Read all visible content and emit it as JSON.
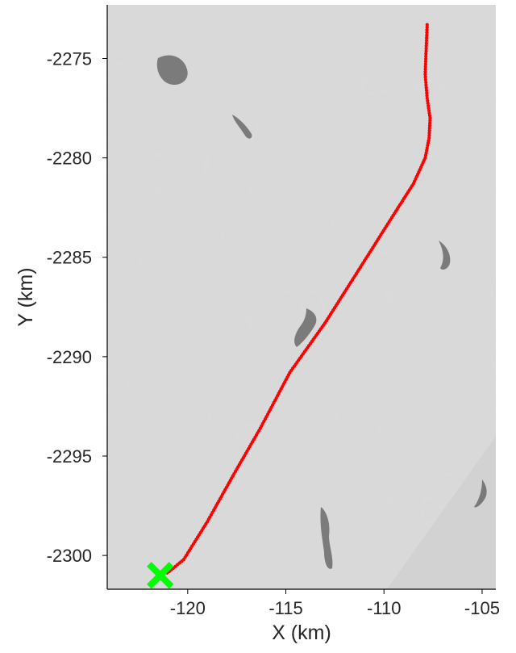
{
  "chart_data": {
    "type": "line",
    "title": "",
    "xlabel": "X (km)",
    "ylabel": "Y (km)",
    "xlim": [
      -124.1,
      -104.3
    ],
    "ylim": [
      -2301.7,
      -2272.3
    ],
    "x_ticks": [
      -120,
      -115,
      -110,
      -105
    ],
    "y_ticks": [
      -2275,
      -2280,
      -2285,
      -2290,
      -2295,
      -2300
    ],
    "x_tick_labels": [
      "-120",
      "-115",
      "-110",
      "-105"
    ],
    "y_tick_labels": [
      "-2275",
      "-2280",
      "-2285",
      "-2290",
      "-2295",
      "-2300"
    ],
    "grid": false,
    "legend": "none",
    "background": "grayscale satellite image of sea ice with dark ice features",
    "series": [
      {
        "color": "#ff0000",
        "marker": "small dots along track",
        "x": [
          -107.8,
          -107.85,
          -107.9,
          -107.8,
          -107.65,
          -107.7,
          -107.9,
          -108.5,
          -109.6,
          -111.2,
          -113.0,
          -114.8,
          -116.3,
          -117.7,
          -119.0,
          -120.2,
          -121.05
        ],
        "y": [
          -2273.3,
          -2274.5,
          -2275.8,
          -2277.0,
          -2278.0,
          -2279.0,
          -2280.0,
          -2281.3,
          -2283.0,
          -2285.5,
          -2288.3,
          -2290.8,
          -2293.6,
          -2296.0,
          -2298.3,
          -2300.2,
          -2300.9
        ]
      }
    ],
    "markers": [
      {
        "symbol": "X",
        "color": "#00ff00",
        "x": -121.4,
        "y": -2301.0
      }
    ]
  }
}
